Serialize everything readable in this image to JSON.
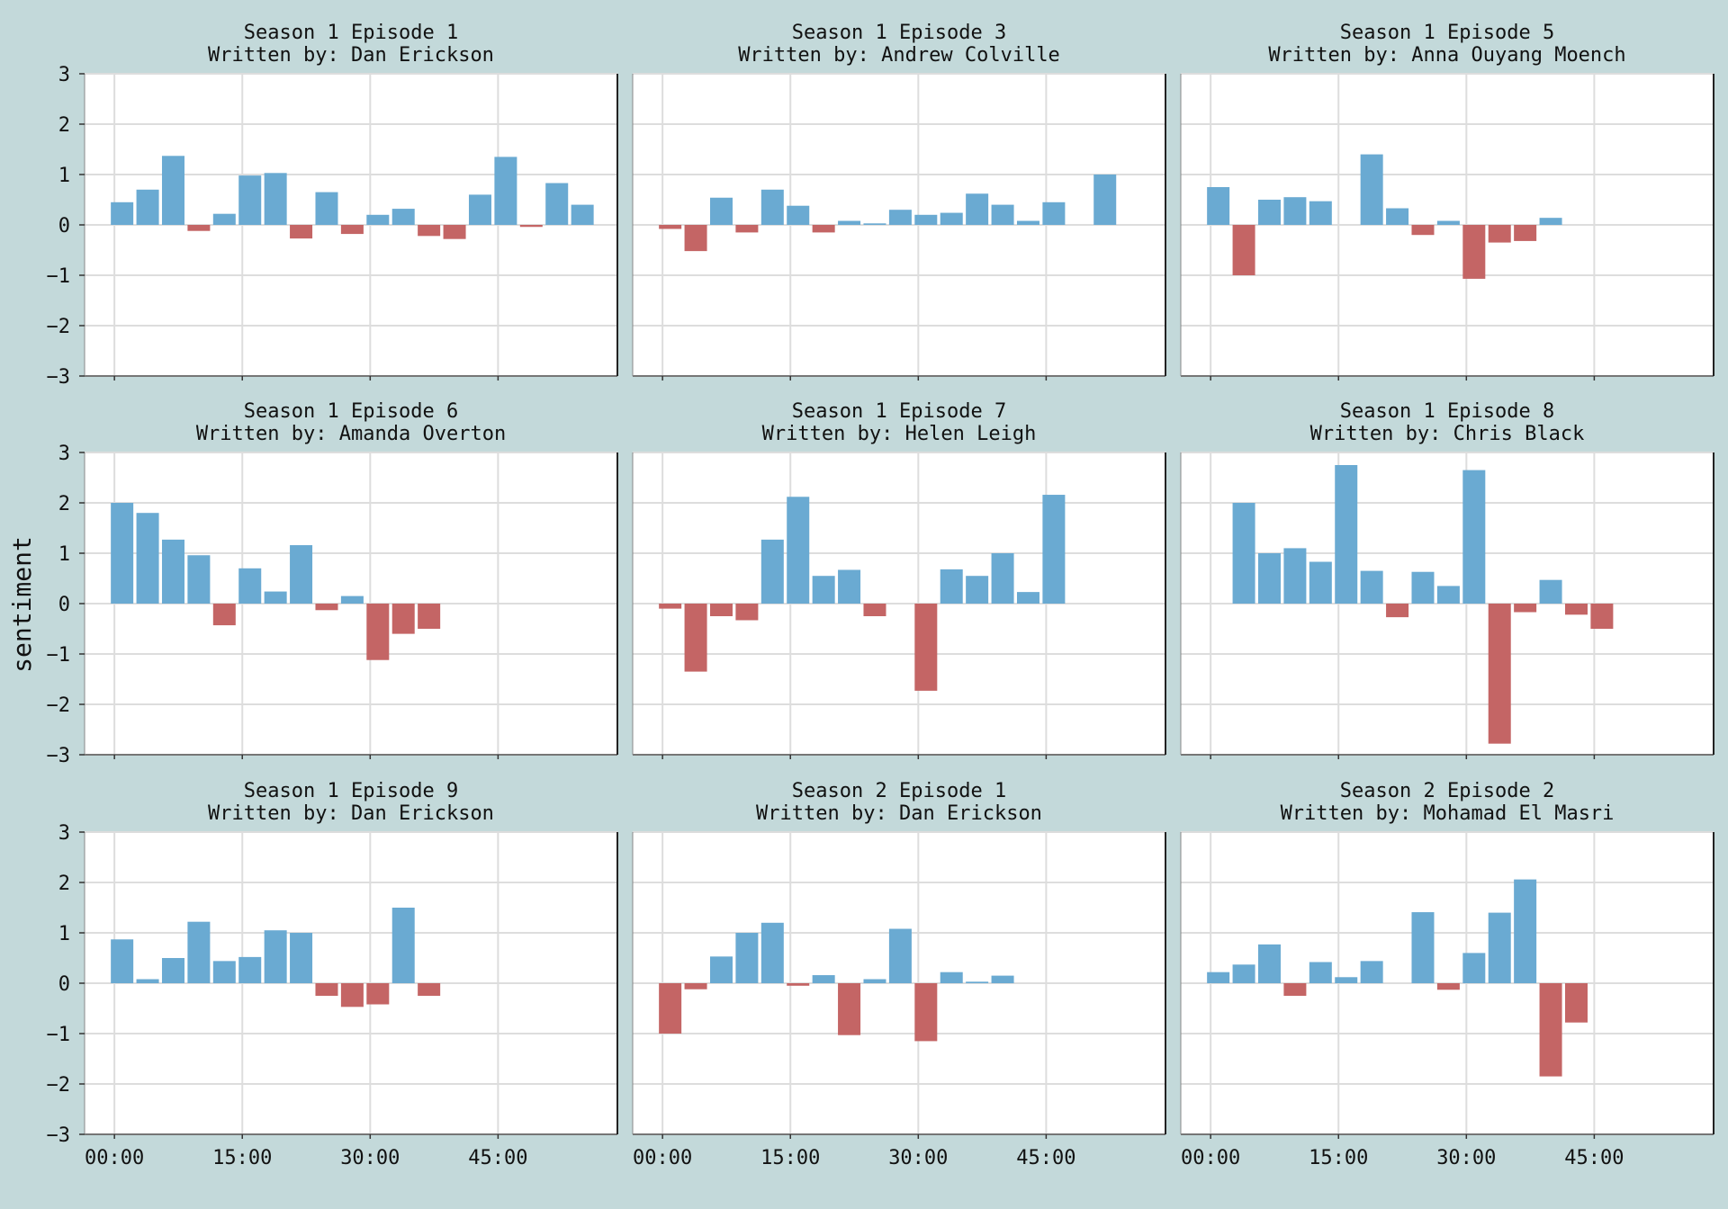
{
  "ylabel": "sentiment",
  "colors": {
    "positive": "#6aaad2",
    "negative": "#c46565",
    "background": "#c3d9da",
    "plot_bg": "#ffffff",
    "grid": "#dddddd"
  },
  "y_ticks": [
    "3",
    "2",
    "1",
    "0",
    "−1",
    "−2",
    "−3"
  ],
  "x_ticks": [
    "00:00",
    "15:00",
    "30:00",
    "45:00"
  ],
  "chart_data": [
    {
      "type": "bar",
      "title": "Season 1 Episode 1",
      "subtitle": "Written by: Dan Erickson",
      "ylim": [
        -3,
        3
      ],
      "xlim_minutes": [
        -3.5,
        59
      ],
      "x_minutes": [
        0,
        3,
        6,
        9,
        12,
        15,
        18,
        21,
        24,
        27,
        30,
        33,
        36,
        39,
        42,
        45,
        48,
        51,
        54
      ],
      "values": [
        0.45,
        0.7,
        1.37,
        -0.12,
        0.22,
        0.98,
        1.03,
        -0.27,
        0.65,
        -0.18,
        0.2,
        0.32,
        -0.22,
        -0.28,
        0.6,
        1.35,
        -0.04,
        0.83,
        0.4
      ]
    },
    {
      "type": "bar",
      "title": "Season 1 Episode 3",
      "subtitle": "Written by: Andrew Colville",
      "ylim": [
        -3,
        3
      ],
      "xlim_minutes": [
        -3.5,
        59
      ],
      "x_minutes": [
        0,
        3,
        6,
        9,
        12,
        15,
        18,
        21,
        24,
        27,
        30,
        33,
        36,
        39,
        42,
        45,
        48,
        51
      ],
      "values": [
        -0.08,
        -0.52,
        0.54,
        -0.15,
        0.7,
        0.38,
        -0.15,
        0.08,
        0.03,
        0.3,
        0.2,
        0.24,
        0.62,
        0.4,
        0.08,
        0.45,
        0,
        1.0
      ]
    },
    {
      "type": "bar",
      "title": "Season 1 Episode 5",
      "subtitle": "Written by: Anna Ouyang Moench",
      "ylim": [
        -3,
        3
      ],
      "xlim_minutes": [
        -3.5,
        59
      ],
      "x_minutes": [
        0,
        3,
        6,
        9,
        12,
        15,
        18,
        21,
        24,
        27,
        30,
        33,
        36,
        39
      ],
      "values": [
        0.75,
        -1.0,
        0.5,
        0.55,
        0.47,
        0,
        1.4,
        0.33,
        -0.2,
        0.08,
        -1.07,
        -0.35,
        -0.32,
        0.14
      ]
    },
    {
      "type": "bar",
      "title": "Season 1 Episode 6",
      "subtitle": "Written by: Amanda Overton",
      "ylim": [
        -3,
        3
      ],
      "xlim_minutes": [
        -3.5,
        59
      ],
      "x_minutes": [
        0,
        3,
        6,
        9,
        12,
        15,
        18,
        21,
        24,
        27,
        30,
        33,
        36
      ],
      "values": [
        2.0,
        1.8,
        1.27,
        0.96,
        -0.43,
        0.7,
        0.24,
        1.16,
        -0.13,
        0.15,
        -1.12,
        -0.6,
        -0.5
      ]
    },
    {
      "type": "bar",
      "title": "Season 1 Episode 7",
      "subtitle": "Written by: Helen Leigh",
      "ylim": [
        -3,
        3
      ],
      "xlim_minutes": [
        -3.5,
        59
      ],
      "x_minutes": [
        0,
        3,
        6,
        9,
        12,
        15,
        18,
        21,
        24,
        27,
        30,
        33,
        36,
        39,
        42,
        45
      ],
      "values": [
        -0.1,
        -1.35,
        -0.25,
        -0.33,
        1.27,
        2.12,
        0.55,
        0.67,
        -0.25,
        0,
        -1.73,
        0.68,
        0.55,
        1.0,
        0.23,
        2.16
      ]
    },
    {
      "type": "bar",
      "title": "Season 1 Episode 8",
      "subtitle": "Written by: Chris Black",
      "ylim": [
        -3,
        3
      ],
      "xlim_minutes": [
        -3.5,
        59
      ],
      "x_minutes": [
        0,
        3,
        6,
        9,
        12,
        15,
        18,
        21,
        24,
        27,
        30,
        33,
        36,
        39,
        42,
        45
      ],
      "values": [
        0,
        2.0,
        1.0,
        1.1,
        0.83,
        2.75,
        0.65,
        -0.27,
        0.63,
        0.35,
        2.65,
        -2.78,
        -0.17,
        0.47,
        -0.22,
        -0.5
      ]
    },
    {
      "type": "bar",
      "title": "Season 1 Episode 9",
      "subtitle": "Written by: Dan Erickson",
      "ylim": [
        -3,
        3
      ],
      "xlim_minutes": [
        -3.5,
        59
      ],
      "x_minutes": [
        0,
        3,
        6,
        9,
        12,
        15,
        18,
        21,
        24,
        27,
        30,
        33,
        36
      ],
      "values": [
        0.87,
        0.08,
        0.5,
        1.22,
        0.44,
        0.52,
        1.05,
        1.0,
        -0.25,
        -0.47,
        -0.42,
        1.5,
        -0.25
      ]
    },
    {
      "type": "bar",
      "title": "Season 2 Episode 1",
      "subtitle": "Written by: Dan Erickson",
      "ylim": [
        -3,
        3
      ],
      "xlim_minutes": [
        -3.5,
        59
      ],
      "x_minutes": [
        0,
        3,
        6,
        9,
        12,
        15,
        18,
        21,
        24,
        27,
        30,
        33,
        36,
        39
      ],
      "values": [
        -1.0,
        -0.12,
        0.53,
        1.0,
        1.2,
        -0.05,
        0.16,
        -1.03,
        0.08,
        1.08,
        -1.15,
        0.22,
        0.03,
        0.15
      ]
    },
    {
      "type": "bar",
      "title": "Season 2 Episode 2",
      "subtitle": "Written by: Mohamad El Masri",
      "ylim": [
        -3,
        3
      ],
      "xlim_minutes": [
        -3.5,
        59
      ],
      "x_minutes": [
        0,
        3,
        6,
        9,
        12,
        15,
        18,
        21,
        24,
        27,
        30,
        33,
        36,
        39,
        42
      ],
      "values": [
        0.22,
        0.37,
        0.77,
        -0.25,
        0.42,
        0.12,
        0.44,
        0,
        1.41,
        -0.13,
        0.6,
        1.4,
        2.06,
        -1.85,
        -0.78
      ]
    }
  ]
}
